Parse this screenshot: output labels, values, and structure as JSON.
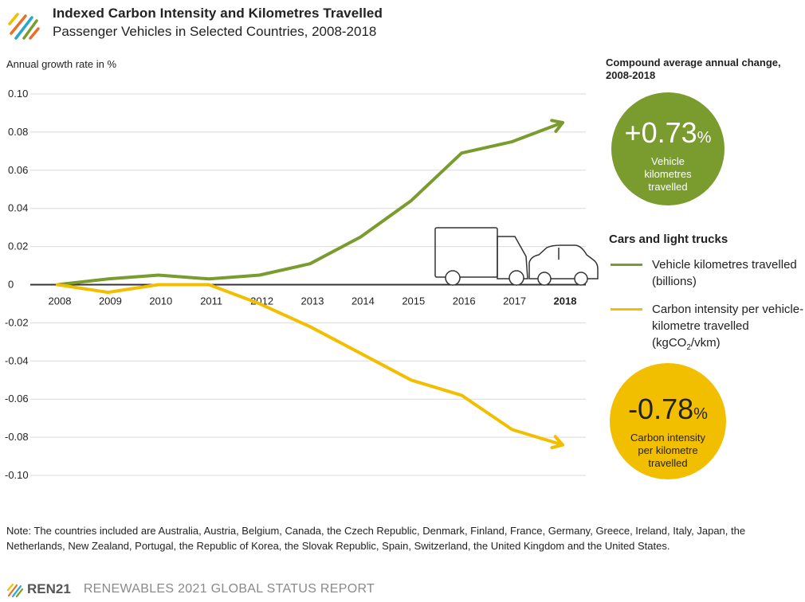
{
  "header": {
    "title": "Indexed Carbon Intensity and Kilometres Travelled",
    "subtitle": "Passenger Vehicles in Selected Countries, 2008-2018"
  },
  "cagr": {
    "title": "Compound average annual change, 2008-2018",
    "vehicle": {
      "value": "+0.73",
      "unit": "%",
      "label": "Vehicle kilometres travelled"
    },
    "carbon": {
      "value": "-0.78",
      "unit": "%",
      "label": "Carbon intensity per kilometre travelled"
    }
  },
  "legend": {
    "title": "Cars and light trucks",
    "vkt_label": "Vehicle kilometres travelled (billions)",
    "ci_label_main": "Carbon intensity per vehicle-kilometre travelled (kgCO",
    "ci_label_sub": "2",
    "ci_label_end": "/vkm)"
  },
  "note": "Note: The countries included are Australia, Austria, Belgium, Canada, the Czech Republic, Denmark, Finland, France, Germany, Greece, Ireland, Italy, Japan, the Netherlands, New Zealand, Portugal, the Republic of Korea, the Slovak Republic, Spain, Switzerland, the United Kingdom and the United States.",
  "footer": {
    "brand": "REN21",
    "report": "RENEWABLES 2021 GLOBAL STATUS REPORT"
  },
  "colors": {
    "green": "#7a9b2e",
    "yellow": "#f2bf00",
    "grid": "#d9d9d9",
    "axis": "#333333"
  },
  "icons": [
    "ren21-logo-icon",
    "truck-icon",
    "car-icon",
    "arrow-head-icon"
  ],
  "chart_data": {
    "type": "line",
    "title": "Indexed Carbon Intensity and Kilometres Travelled",
    "ylabel": "Annual growth rate in %",
    "xlabel": "",
    "x": [
      "2008",
      "2009",
      "2010",
      "2011",
      "2012",
      "2013",
      "2014",
      "2015",
      "2016",
      "2017",
      "2018"
    ],
    "x_bold": [
      "2018"
    ],
    "ylim": [
      -0.1,
      0.1
    ],
    "yticks": [
      "0.10",
      "0.08",
      "0.06",
      "0.04",
      "0.02",
      "0",
      "-0.02",
      "-0.04",
      "-0.06",
      "-0.08",
      "-0.10"
    ],
    "ytick_values": [
      0.1,
      0.08,
      0.06,
      0.04,
      0.02,
      0,
      -0.02,
      -0.04,
      -0.06,
      -0.08,
      -0.1
    ],
    "grid": true,
    "series": [
      {
        "name": "Vehicle kilometres travelled (billions)",
        "color": "#7a9b2e",
        "values": [
          0.0,
          0.003,
          0.005,
          0.003,
          0.005,
          0.011,
          0.025,
          0.044,
          0.069,
          0.075,
          0.085
        ]
      },
      {
        "name": "Carbon intensity per vehicle-kilometre travelled (kgCO2/vkm)",
        "color": "#f2bf00",
        "values": [
          0.0,
          -0.004,
          0.0,
          0.0,
          -0.01,
          -0.022,
          -0.036,
          -0.05,
          -0.058,
          -0.076,
          -0.084
        ]
      }
    ]
  }
}
